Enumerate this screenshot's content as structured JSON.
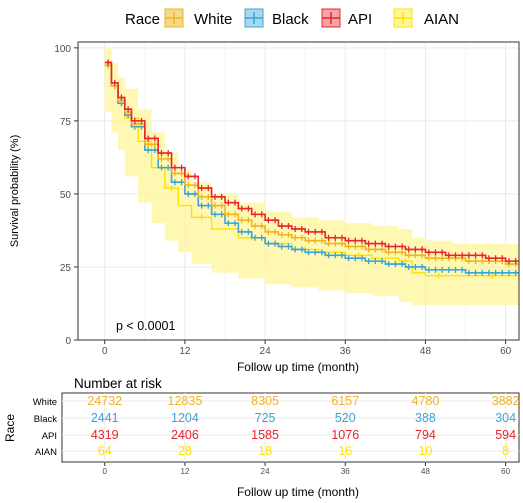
{
  "legend": {
    "title": "Race",
    "items": [
      {
        "label": "White",
        "color": "#f0b323"
      },
      {
        "label": "Black",
        "color": "#3ba3d8"
      },
      {
        "label": "API",
        "color": "#e8242e"
      },
      {
        "label": "AIAN",
        "color": "#ffe100"
      }
    ]
  },
  "colors": {
    "White": "#f0b323",
    "Black": "#3ba3d8",
    "API": "#e8242e",
    "AIAN": "#ffe100",
    "grid": "#e9e9e9",
    "ci_band": "#fff59a"
  },
  "chart_data": [
    {
      "type": "line",
      "subtype": "kaplan-meier step",
      "ylabel": "Survival probability (%)",
      "xlabel": "Follow up time (month)",
      "xlim": [
        -4,
        62
      ],
      "ylim": [
        0,
        102
      ],
      "xticks": [
        0,
        12,
        24,
        36,
        48,
        60
      ],
      "yticks": [
        0,
        25,
        50,
        75,
        100
      ],
      "grid": true,
      "annotation": "p < 0.0001",
      "series": [
        {
          "name": "White",
          "x": [
            0,
            1,
            2,
            3,
            4,
            6,
            8,
            10,
            12,
            14,
            16,
            18,
            20,
            22,
            24,
            26,
            28,
            30,
            33,
            36,
            39,
            42,
            45,
            48,
            51,
            54,
            57,
            60,
            62
          ],
          "y": [
            94,
            87,
            82,
            78,
            74,
            67,
            62,
            57,
            53,
            49,
            46,
            43,
            41,
            39,
            37,
            36,
            35,
            34,
            33,
            32,
            31,
            30,
            29,
            28,
            28,
            27,
            27,
            26,
            26
          ]
        },
        {
          "name": "Black",
          "x": [
            0,
            1,
            2,
            3,
            4,
            6,
            8,
            10,
            12,
            14,
            16,
            18,
            20,
            22,
            24,
            26,
            28,
            30,
            33,
            36,
            39,
            42,
            45,
            48,
            51,
            54,
            57,
            60,
            62
          ],
          "y": [
            94,
            87,
            81,
            77,
            73,
            65,
            59,
            54,
            50,
            46,
            43,
            40,
            37,
            35,
            33,
            32,
            31,
            30,
            29,
            28,
            27,
            26,
            25,
            24,
            24,
            23,
            23,
            23,
            23
          ]
        },
        {
          "name": "API",
          "x": [
            0,
            1,
            2,
            3,
            4,
            6,
            8,
            10,
            12,
            14,
            16,
            18,
            20,
            22,
            24,
            26,
            28,
            30,
            33,
            36,
            39,
            42,
            45,
            48,
            51,
            54,
            57,
            60,
            62
          ],
          "y": [
            95,
            88,
            83,
            79,
            75,
            69,
            64,
            59,
            56,
            52,
            49,
            47,
            45,
            43,
            41,
            39,
            38,
            37,
            35,
            34,
            33,
            32,
            31,
            30,
            29,
            29,
            28,
            27,
            27
          ]
        },
        {
          "name": "AIAN",
          "x": [
            0,
            1,
            2,
            3,
            5,
            7,
            9,
            11,
            13,
            16,
            20,
            24,
            28,
            32,
            36,
            40,
            44,
            46,
            48,
            52,
            56,
            60,
            62
          ],
          "y": [
            94,
            87,
            81,
            76,
            68,
            59,
            52,
            46,
            42,
            38,
            35,
            33,
            31,
            30,
            29,
            28,
            27,
            23,
            22,
            22,
            22,
            22,
            22
          ]
        }
      ],
      "ci_band": {
        "x": [
          0,
          1,
          2,
          3,
          5,
          7,
          9,
          11,
          13,
          16,
          20,
          24,
          28,
          32,
          36,
          40,
          44,
          46,
          48,
          52,
          56,
          60,
          62
        ],
        "upper": [
          100,
          95,
          90,
          86,
          79,
          71,
          64,
          58,
          54,
          50,
          47,
          44,
          42,
          41,
          40,
          39,
          38,
          35,
          34,
          33,
          33,
          33,
          33
        ],
        "lower": [
          88,
          78,
          71,
          65,
          56,
          47,
          40,
          34,
          30,
          26,
          23,
          21,
          19,
          18,
          17,
          16,
          15,
          13,
          12,
          12,
          12,
          12,
          12
        ]
      }
    },
    {
      "type": "table",
      "title": "Number at risk",
      "ylabel": "Race",
      "xlabel": "Follow up time (month)",
      "xticks": [
        0,
        12,
        24,
        36,
        48,
        60
      ],
      "rows": [
        {
          "label": "White",
          "values": [
            24732,
            12835,
            8305,
            6157,
            4780,
            3882
          ]
        },
        {
          "label": "Black",
          "values": [
            2441,
            1204,
            725,
            520,
            388,
            304
          ]
        },
        {
          "label": "API",
          "values": [
            4319,
            2406,
            1585,
            1076,
            794,
            594
          ]
        },
        {
          "label": "AIAN",
          "values": [
            64,
            28,
            18,
            16,
            10,
            8
          ]
        }
      ]
    }
  ]
}
